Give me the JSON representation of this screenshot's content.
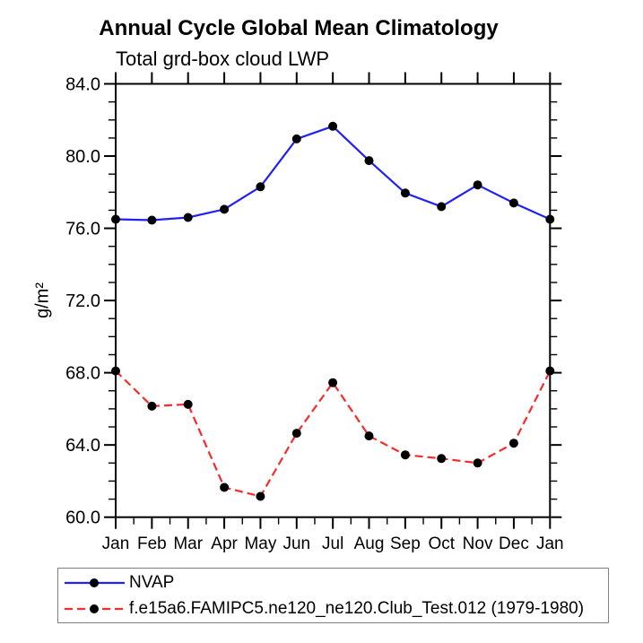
{
  "chart_data": {
    "type": "line",
    "title": "Annual Cycle Global Mean Climatology",
    "subtitle": "Total grd-box cloud LWP",
    "ylabel": "g/m²",
    "categories": [
      "Jan",
      "Feb",
      "Mar",
      "Apr",
      "May",
      "Jun",
      "Jul",
      "Aug",
      "Sep",
      "Oct",
      "Nov",
      "Dec",
      "Jan"
    ],
    "ylim": [
      60.0,
      84.0
    ],
    "ytick_step": 4,
    "yminor_step": 1,
    "ytick_labels": [
      "60.0",
      "64.0",
      "68.0",
      "72.0",
      "76.0",
      "80.0",
      "84.0"
    ],
    "grid": false,
    "legend_position": "below-plot-left",
    "series": [
      {
        "name": "NVAP",
        "color": "#2222f0",
        "line_style": "solid",
        "marker": "filled-circle",
        "marker_color": "#000000",
        "values": [
          76.5,
          76.45,
          76.6,
          77.05,
          78.3,
          80.95,
          81.65,
          79.75,
          77.95,
          77.2,
          78.4,
          77.4,
          76.5
        ]
      },
      {
        "name": "f.e15a6.FAMIPC5.ne120_ne120.Club_Test.012 (1979-1980)",
        "color": "#f82a2a",
        "line_style": "dashed",
        "marker": "filled-circle",
        "marker_color": "#000000",
        "values": [
          68.1,
          66.15,
          66.25,
          61.65,
          61.15,
          64.65,
          67.45,
          64.5,
          63.45,
          63.25,
          63.0,
          64.1,
          68.1
        ]
      }
    ]
  },
  "colors": {
    "axis": "#000000",
    "text": "#000000",
    "legend_border": "#808080",
    "background": "#ffffff"
  }
}
